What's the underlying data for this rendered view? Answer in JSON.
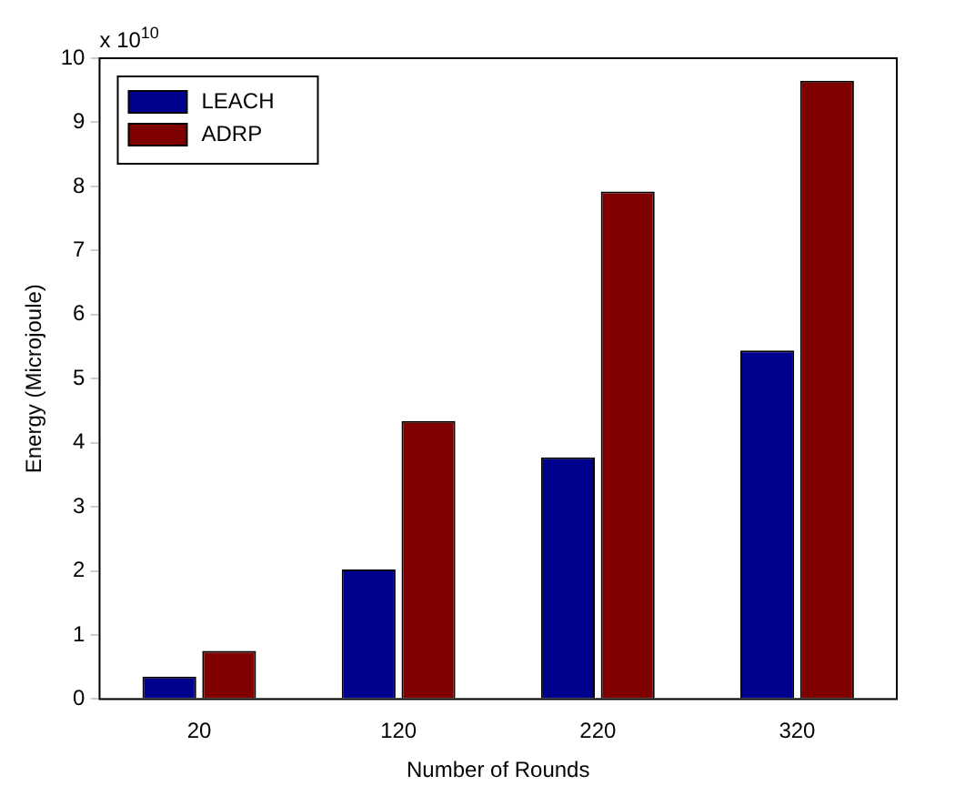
{
  "chart_data": {
    "type": "bar",
    "xlabel": "Number of Rounds",
    "ylabel": "Energy (Microjoule)",
    "annotations": [
      "x 10$^{10}$"
    ],
    "categories": [
      "20",
      "120",
      "220",
      "320"
    ],
    "series": [
      {
        "name": "LEACH",
        "color": "#00008f",
        "values": [
          0.35,
          2.02,
          3.77,
          5.44
        ]
      },
      {
        "name": "ADRP",
        "color": "#800000",
        "values": [
          0.75,
          4.34,
          7.92,
          9.65
        ]
      }
    ],
    "ylim": [
      0,
      10
    ],
    "yticks": [
      0,
      1,
      2,
      3,
      4,
      5,
      6,
      7,
      8,
      9,
      10
    ],
    "grid": false,
    "legend": "top left"
  }
}
